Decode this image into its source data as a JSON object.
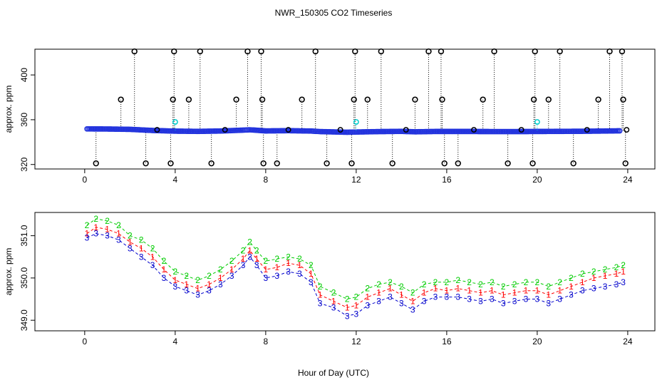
{
  "chart_data": {
    "title": "NWR_150305  CO2 Timeseries",
    "xlabel": "Hour of Day (UTC)",
    "panels": [
      {
        "type": "scatter",
        "ylabel": "approx. ppm",
        "xlim": [
          -2.2,
          25.2
        ],
        "ylim": [
          316,
          423
        ],
        "xticks": [
          0,
          4,
          8,
          12,
          16,
          20,
          24
        ],
        "yticks": [
          320,
          360,
          400
        ],
        "baseline_ppm": 350.5,
        "spikes": [
          {
            "x": 0.5,
            "y": 321
          },
          {
            "x": 1.6,
            "y": 378
          },
          {
            "x": 2.2,
            "y": 421
          },
          {
            "x": 2.7,
            "y": 321
          },
          {
            "x": 3.8,
            "y": 321
          },
          {
            "x": 3.9,
            "y": 378
          },
          {
            "x": 3.95,
            "y": 421
          },
          {
            "x": 4.6,
            "y": 378
          },
          {
            "x": 5.1,
            "y": 421
          },
          {
            "x": 5.6,
            "y": 321
          },
          {
            "x": 6.7,
            "y": 378
          },
          {
            "x": 7.2,
            "y": 421
          },
          {
            "x": 7.8,
            "y": 421
          },
          {
            "x": 7.85,
            "y": 378
          },
          {
            "x": 7.9,
            "y": 321
          },
          {
            "x": 8.5,
            "y": 321
          },
          {
            "x": 9.6,
            "y": 378
          },
          {
            "x": 10.2,
            "y": 421
          },
          {
            "x": 10.7,
            "y": 321
          },
          {
            "x": 11.8,
            "y": 321
          },
          {
            "x": 11.9,
            "y": 378
          },
          {
            "x": 11.95,
            "y": 421
          },
          {
            "x": 12.5,
            "y": 378
          },
          {
            "x": 13.1,
            "y": 421
          },
          {
            "x": 13.6,
            "y": 321
          },
          {
            "x": 14.6,
            "y": 378
          },
          {
            "x": 15.2,
            "y": 421
          },
          {
            "x": 15.75,
            "y": 421
          },
          {
            "x": 15.8,
            "y": 378
          },
          {
            "x": 15.9,
            "y": 321
          },
          {
            "x": 16.5,
            "y": 321
          },
          {
            "x": 17.6,
            "y": 378
          },
          {
            "x": 18.1,
            "y": 421
          },
          {
            "x": 18.7,
            "y": 321
          },
          {
            "x": 19.8,
            "y": 321
          },
          {
            "x": 19.85,
            "y": 378
          },
          {
            "x": 19.9,
            "y": 421
          },
          {
            "x": 20.5,
            "y": 378
          },
          {
            "x": 21.0,
            "y": 421
          },
          {
            "x": 21.6,
            "y": 321
          },
          {
            "x": 22.7,
            "y": 378
          },
          {
            "x": 23.2,
            "y": 421
          },
          {
            "x": 23.75,
            "y": 421
          },
          {
            "x": 23.8,
            "y": 378
          },
          {
            "x": 23.9,
            "y": 321
          }
        ],
        "small_marks": [
          {
            "x": 3.2,
            "y": 351
          },
          {
            "x": 6.2,
            "y": 351
          },
          {
            "x": 9.0,
            "y": 351
          },
          {
            "x": 11.3,
            "y": 351
          },
          {
            "x": 14.2,
            "y": 351
          },
          {
            "x": 17.2,
            "y": 351
          },
          {
            "x": 19.3,
            "y": 351
          },
          {
            "x": 22.2,
            "y": 351
          },
          {
            "x": 23.95,
            "y": 351
          }
        ],
        "cyan_marks": [
          {
            "x": 4.0,
            "y": 358
          },
          {
            "x": 12.0,
            "y": 358
          },
          {
            "x": 20.0,
            "y": 358
          }
        ],
        "blue_series": [
          [
            0.1,
            351.8
          ],
          [
            1.0,
            351.7
          ],
          [
            2.0,
            351.4
          ],
          [
            3.0,
            350.4
          ],
          [
            4.0,
            349.8
          ],
          [
            5.0,
            349.6
          ],
          [
            6.0,
            349.9
          ],
          [
            7.0,
            350.7
          ],
          [
            7.3,
            351.0
          ],
          [
            8.0,
            350.0
          ],
          [
            9.0,
            350.2
          ],
          [
            10.0,
            349.9
          ],
          [
            10.4,
            349.4
          ],
          [
            11.0,
            349.1
          ],
          [
            11.6,
            348.8
          ],
          [
            12.0,
            349.0
          ],
          [
            13.0,
            349.4
          ],
          [
            14.0,
            349.6
          ],
          [
            14.6,
            349.2
          ],
          [
            15.5,
            349.5
          ],
          [
            16.0,
            349.5
          ],
          [
            17.0,
            349.5
          ],
          [
            18.0,
            349.4
          ],
          [
            19.0,
            349.4
          ],
          [
            20.0,
            349.5
          ],
          [
            21.0,
            349.6
          ],
          [
            22.0,
            349.7
          ],
          [
            23.0,
            349.9
          ],
          [
            23.7,
            350.1
          ]
        ]
      },
      {
        "type": "scatter",
        "ylabel": "approx. ppm",
        "xlim": [
          -2.2,
          25.2
        ],
        "ylim": [
          348.75,
          351.55
        ],
        "xticks": [
          0,
          4,
          8,
          12,
          16,
          20,
          24
        ],
        "yticks": [
          349.0,
          350.0,
          351.0
        ],
        "ytick_labels": [
          "349.0",
          "350.0",
          "351.0"
        ],
        "series": [
          {
            "name": "1",
            "marker": "1",
            "color": "#ff0000",
            "x": [
              0.1,
              0.5,
              1.0,
              1.5,
              2.0,
              2.5,
              3.0,
              3.5,
              4.0,
              4.5,
              5.0,
              5.5,
              6.0,
              6.5,
              7.0,
              7.3,
              7.6,
              8.0,
              8.5,
              9.0,
              9.5,
              10.0,
              10.4,
              11.0,
              11.6,
              12.0,
              12.5,
              13.0,
              13.5,
              14.0,
              14.5,
              15.0,
              15.5,
              16.0,
              16.5,
              17.0,
              17.5,
              18.0,
              18.5,
              19.0,
              19.5,
              20.0,
              20.5,
              21.0,
              21.5,
              22.0,
              22.5,
              23.0,
              23.5,
              23.8
            ],
            "y": [
              351.05,
              351.2,
              351.15,
              351.05,
              350.85,
              350.7,
              350.5,
              350.2,
              349.95,
              349.85,
              349.75,
              349.85,
              350.0,
              350.2,
              350.45,
              350.65,
              350.45,
              350.2,
              350.25,
              350.35,
              350.3,
              350.1,
              349.6,
              349.45,
              349.3,
              349.35,
              349.55,
              349.65,
              349.75,
              349.6,
              349.45,
              349.65,
              349.75,
              349.7,
              349.75,
              349.7,
              349.65,
              349.7,
              349.6,
              349.65,
              349.7,
              349.7,
              349.6,
              349.7,
              349.8,
              349.9,
              350.0,
              350.05,
              350.1,
              350.15
            ]
          },
          {
            "name": "2",
            "marker": "2",
            "color": "#00cc00",
            "x": [
              0.1,
              0.5,
              1.0,
              1.5,
              2.0,
              2.5,
              3.0,
              3.5,
              4.0,
              4.5,
              5.0,
              5.5,
              6.0,
              6.5,
              7.0,
              7.3,
              7.6,
              8.0,
              8.5,
              9.0,
              9.5,
              10.0,
              10.4,
              11.0,
              11.6,
              12.0,
              12.5,
              13.0,
              13.5,
              14.0,
              14.5,
              15.0,
              15.5,
              16.0,
              16.5,
              17.0,
              17.5,
              18.0,
              18.5,
              19.0,
              19.5,
              20.0,
              20.5,
              21.0,
              21.5,
              22.0,
              22.5,
              23.0,
              23.5,
              23.8
            ],
            "y": [
              351.25,
              351.4,
              351.35,
              351.25,
              351.0,
              350.9,
              350.7,
              350.4,
              350.15,
              350.05,
              349.95,
              350.05,
              350.2,
              350.4,
              350.65,
              350.85,
              350.65,
              350.4,
              350.45,
              350.5,
              350.45,
              350.3,
              349.8,
              349.65,
              349.5,
              349.55,
              349.75,
              349.85,
              349.9,
              349.8,
              349.65,
              349.85,
              349.9,
              349.9,
              349.95,
              349.9,
              349.85,
              349.9,
              349.8,
              349.85,
              349.9,
              349.9,
              349.8,
              349.9,
              350.0,
              350.1,
              350.15,
              350.2,
              350.25,
              350.3
            ]
          },
          {
            "name": "3",
            "marker": "3",
            "color": "#0000cc",
            "x": [
              0.1,
              0.5,
              1.0,
              1.5,
              2.0,
              2.5,
              3.0,
              3.5,
              4.0,
              4.5,
              5.0,
              5.5,
              6.0,
              6.5,
              7.0,
              7.3,
              7.6,
              8.0,
              8.5,
              9.0,
              9.5,
              10.0,
              10.4,
              11.0,
              11.6,
              12.0,
              12.5,
              13.0,
              13.5,
              14.0,
              14.5,
              15.0,
              15.5,
              16.0,
              16.5,
              17.0,
              17.5,
              18.0,
              18.5,
              19.0,
              19.5,
              20.0,
              20.5,
              21.0,
              21.5,
              22.0,
              22.5,
              23.0,
              23.5,
              23.8
            ],
            "y": [
              350.95,
              351.05,
              351.0,
              350.9,
              350.7,
              350.5,
              350.3,
              350.0,
              349.8,
              349.7,
              349.6,
              349.7,
              349.85,
              350.05,
              350.3,
              350.5,
              350.3,
              350.0,
              350.05,
              350.15,
              350.1,
              349.9,
              349.4,
              349.3,
              349.1,
              349.15,
              349.35,
              349.45,
              349.55,
              349.4,
              349.25,
              349.45,
              349.55,
              349.55,
              349.55,
              349.5,
              349.45,
              349.5,
              349.4,
              349.45,
              349.5,
              349.5,
              349.4,
              349.5,
              349.6,
              349.7,
              349.75,
              349.8,
              349.85,
              349.9
            ]
          }
        ]
      }
    ]
  }
}
